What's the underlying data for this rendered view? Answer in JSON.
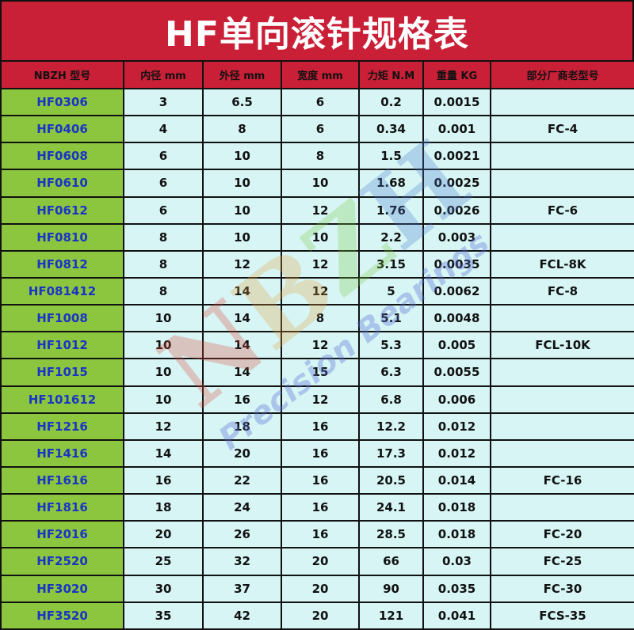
{
  "title": "HF单向滚针规格表",
  "watermark": {
    "brand": "NBZH",
    "tagline": "Precision Bearings"
  },
  "colors": {
    "title_bg": "#c91f37",
    "header_bg": "#c91f37",
    "model_bg": "#8cc63f",
    "cell_bg": "#d6f5f4",
    "model_text": "#1a35c4"
  },
  "headers": [
    "NBZH 型号",
    "内径 mm",
    "外径 mm",
    "宽度 mm",
    "力矩 N.M",
    "重量 KG",
    "部分厂商老型号"
  ],
  "rows": [
    [
      "HF0306",
      "3",
      "6.5",
      "6",
      "0.2",
      "0.0015",
      ""
    ],
    [
      "HF0406",
      "4",
      "8",
      "6",
      "0.34",
      "0.001",
      "FC-4"
    ],
    [
      "HF0608",
      "6",
      "10",
      "8",
      "1.5",
      "0.0021",
      ""
    ],
    [
      "HF0610",
      "6",
      "10",
      "10",
      "1.68",
      "0.0025",
      ""
    ],
    [
      "HF0612",
      "6",
      "10",
      "12",
      "1.76",
      "0.0026",
      "FC-6"
    ],
    [
      "HF0810",
      "8",
      "10",
      "10",
      "2.2",
      "0.003",
      ""
    ],
    [
      "HF0812",
      "8",
      "12",
      "12",
      "3.15",
      "0.0035",
      "FCL-8K"
    ],
    [
      "HF081412",
      "8",
      "14",
      "12",
      "5",
      "0.0062",
      "FC-8"
    ],
    [
      "HF1008",
      "10",
      "14",
      "8",
      "5.1",
      "0.0048",
      ""
    ],
    [
      "HF1012",
      "10",
      "14",
      "12",
      "5.3",
      "0.005",
      "FCL-10K"
    ],
    [
      "HF1015",
      "10",
      "14",
      "15",
      "6.3",
      "0.0055",
      ""
    ],
    [
      "HF101612",
      "10",
      "16",
      "12",
      "6.8",
      "0.006",
      ""
    ],
    [
      "HF1216",
      "12",
      "18",
      "16",
      "12.2",
      "0.012",
      ""
    ],
    [
      "HF1416",
      "14",
      "20",
      "16",
      "17.3",
      "0.012",
      ""
    ],
    [
      "HF1616",
      "16",
      "22",
      "16",
      "20.5",
      "0.014",
      "FC-16"
    ],
    [
      "HF1816",
      "18",
      "24",
      "16",
      "24.1",
      "0.018",
      ""
    ],
    [
      "HF2016",
      "20",
      "26",
      "16",
      "28.5",
      "0.018",
      "FC-20"
    ],
    [
      "HF2520",
      "25",
      "32",
      "20",
      "66",
      "0.03",
      "FC-25"
    ],
    [
      "HF3020",
      "30",
      "37",
      "20",
      "90",
      "0.035",
      "FC-30"
    ],
    [
      "HF3520",
      "35",
      "42",
      "20",
      "121",
      "0.041",
      "FCS-35"
    ]
  ]
}
